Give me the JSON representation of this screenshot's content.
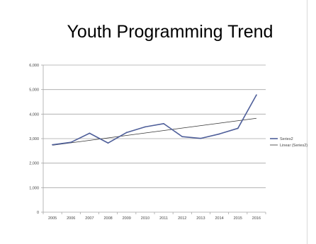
{
  "chart_data": {
    "type": "line",
    "title": "Youth Programming Trend",
    "xlabel": "",
    "ylabel": "",
    "categories": [
      "2005",
      "2006",
      "2007",
      "2008",
      "2009",
      "2010",
      "2011",
      "2012",
      "2013",
      "2014",
      "2015",
      "2016"
    ],
    "series": [
      {
        "name": "Series2",
        "values": [
          2750,
          2850,
          3220,
          2820,
          3250,
          3480,
          3610,
          3080,
          3010,
          3190,
          3420,
          4780
        ],
        "color": "#4f5f9a"
      }
    ],
    "trendline": {
      "name": "Linear (Series2)",
      "start": 2730,
      "end": 3830,
      "color": "#333333"
    },
    "ylim": [
      0,
      6000
    ],
    "yticks": [
      0,
      1000,
      2000,
      3000,
      4000,
      5000,
      6000
    ],
    "ytick_labels": [
      "0",
      "1,000",
      "2,000",
      "3,000",
      "4,000",
      "5,000",
      "6,000"
    ],
    "grid": true,
    "legend_position": "right"
  }
}
